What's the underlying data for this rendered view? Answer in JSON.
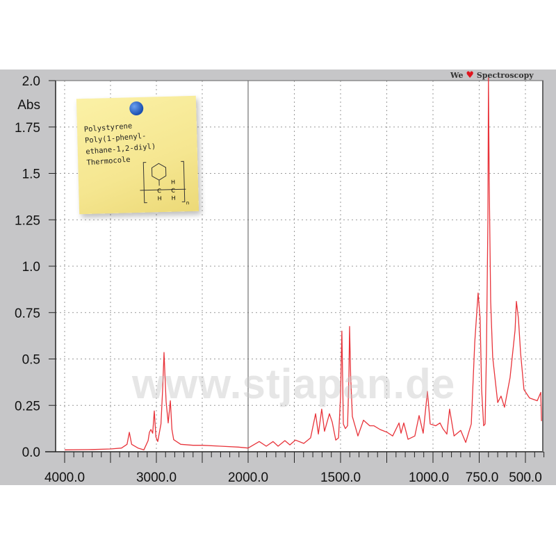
{
  "brand": {
    "prefix": "We",
    "heart": "♥",
    "suffix": "Spectroscopy"
  },
  "watermark": "www.stjapan.de",
  "note": {
    "lines": [
      "Polystyrene",
      "Poly(1-phenyl-",
      "ethane-1,2-diyl)",
      "Thermocole"
    ],
    "structure_labels": {
      "h": "H",
      "c": "C",
      "n": "n"
    }
  },
  "colors": {
    "trace": "#e8333a",
    "background": "#c6c6c8",
    "plot": "#ffffff",
    "note": "#f7e999",
    "pin": "#1a4fb0"
  },
  "chart_data": {
    "type": "line",
    "title": "",
    "xlabel": "",
    "ylabel": "Abs",
    "xlim": [
      4000,
      400
    ],
    "x_axis_break": 2000,
    "x_scale_note": "scale doubles below 2000",
    "ylim": [
      0,
      2.0
    ],
    "grid": true,
    "x_ticks": [
      4000,
      3500,
      3000,
      2500,
      2000,
      1750,
      1500,
      1250,
      1000,
      750,
      500
    ],
    "x_tick_labels": [
      {
        "value": 4000,
        "label": "4000.0"
      },
      {
        "value": 3000,
        "label": "3000.0"
      },
      {
        "value": 2000,
        "label": "2000.0"
      },
      {
        "value": 1500,
        "label": "1500.0"
      },
      {
        "value": 1000,
        "label": "1000.0"
      },
      {
        "value": 750,
        "label": "750.0"
      },
      {
        "value": 500,
        "label": "500.0"
      }
    ],
    "y_tick_labels": [
      {
        "value": 2.0,
        "label": "2.0"
      },
      {
        "value": 1.75,
        "label": "1.75"
      },
      {
        "value": 1.5,
        "label": "1.5"
      },
      {
        "value": 1.25,
        "label": "1.25"
      },
      {
        "value": 1.0,
        "label": "1.0"
      },
      {
        "value": 0.75,
        "label": "0.75"
      },
      {
        "value": 0.5,
        "label": "0.5"
      },
      {
        "value": 0.25,
        "label": "0.25"
      },
      {
        "value": 0.0,
        "label": "0.0"
      }
    ],
    "series": [
      {
        "points": [
          [
            4000,
            0.01
          ],
          [
            3700,
            0.012
          ],
          [
            3500,
            0.015
          ],
          [
            3380,
            0.02
          ],
          [
            3320,
            0.04
          ],
          [
            3295,
            0.105
          ],
          [
            3270,
            0.04
          ],
          [
            3200,
            0.02
          ],
          [
            3136,
            0.01
          ],
          [
            3090,
            0.06
          ],
          [
            3076,
            0.105
          ],
          [
            3060,
            0.12
          ],
          [
            3040,
            0.1
          ],
          [
            3023,
            0.22
          ],
          [
            3005,
            0.08
          ],
          [
            2985,
            0.055
          ],
          [
            2950,
            0.15
          ],
          [
            2930,
            0.35
          ],
          [
            2917,
            0.535
          ],
          [
            2905,
            0.4
          ],
          [
            2894,
            0.27
          ],
          [
            2871,
            0.155
          ],
          [
            2848,
            0.275
          ],
          [
            2830,
            0.12
          ],
          [
            2811,
            0.065
          ],
          [
            2735,
            0.04
          ],
          [
            2600,
            0.035
          ],
          [
            2500,
            0.035
          ],
          [
            2300,
            0.03
          ],
          [
            2106,
            0.025
          ],
          [
            2000,
            0.02
          ],
          [
            1940,
            0.055
          ],
          [
            1902,
            0.03
          ],
          [
            1865,
            0.055
          ],
          [
            1838,
            0.03
          ],
          [
            1801,
            0.06
          ],
          [
            1774,
            0.037
          ],
          [
            1744,
            0.063
          ],
          [
            1699,
            0.045
          ],
          [
            1662,
            0.075
          ],
          [
            1635,
            0.205
          ],
          [
            1620,
            0.095
          ],
          [
            1602,
            0.23
          ],
          [
            1587,
            0.11
          ],
          [
            1560,
            0.205
          ],
          [
            1545,
            0.16
          ],
          [
            1526,
            0.063
          ],
          [
            1511,
            0.075
          ],
          [
            1500,
            0.3
          ],
          [
            1493,
            0.65
          ],
          [
            1488,
            0.35
          ],
          [
            1485,
            0.15
          ],
          [
            1474,
            0.125
          ],
          [
            1462,
            0.14
          ],
          [
            1455,
            0.4
          ],
          [
            1451,
            0.675
          ],
          [
            1445,
            0.4
          ],
          [
            1436,
            0.19
          ],
          [
            1406,
            0.085
          ],
          [
            1376,
            0.17
          ],
          [
            1342,
            0.14
          ],
          [
            1320,
            0.14
          ],
          [
            1286,
            0.12
          ],
          [
            1248,
            0.105
          ],
          [
            1218,
            0.085
          ],
          [
            1184,
            0.155
          ],
          [
            1173,
            0.1
          ],
          [
            1158,
            0.155
          ],
          [
            1135,
            0.067
          ],
          [
            1098,
            0.085
          ],
          [
            1075,
            0.195
          ],
          [
            1053,
            0.1
          ],
          [
            1030,
            0.325
          ],
          [
            1015,
            0.15
          ],
          [
            985,
            0.14
          ],
          [
            962,
            0.155
          ],
          [
            947,
            0.125
          ],
          [
            925,
            0.095
          ],
          [
            910,
            0.23
          ],
          [
            886,
            0.085
          ],
          [
            850,
            0.115
          ],
          [
            823,
            0.05
          ],
          [
            793,
            0.15
          ],
          [
            774,
            0.59
          ],
          [
            756,
            0.855
          ],
          [
            745,
            0.72
          ],
          [
            737,
            0.335
          ],
          [
            726,
            0.14
          ],
          [
            718,
            0.15
          ],
          [
            711,
            0.53
          ],
          [
            703,
            1.24
          ],
          [
            700,
            2.05
          ],
          [
            696,
            1.46
          ],
          [
            688,
            0.81
          ],
          [
            677,
            0.51
          ],
          [
            650,
            0.265
          ],
          [
            632,
            0.3
          ],
          [
            613,
            0.24
          ],
          [
            583,
            0.4
          ],
          [
            556,
            0.655
          ],
          [
            549,
            0.81
          ],
          [
            538,
            0.72
          ],
          [
            526,
            0.53
          ],
          [
            508,
            0.335
          ],
          [
            478,
            0.29
          ],
          [
            436,
            0.275
          ],
          [
            417,
            0.32
          ],
          [
            413,
            0.165
          ]
        ]
      }
    ]
  }
}
